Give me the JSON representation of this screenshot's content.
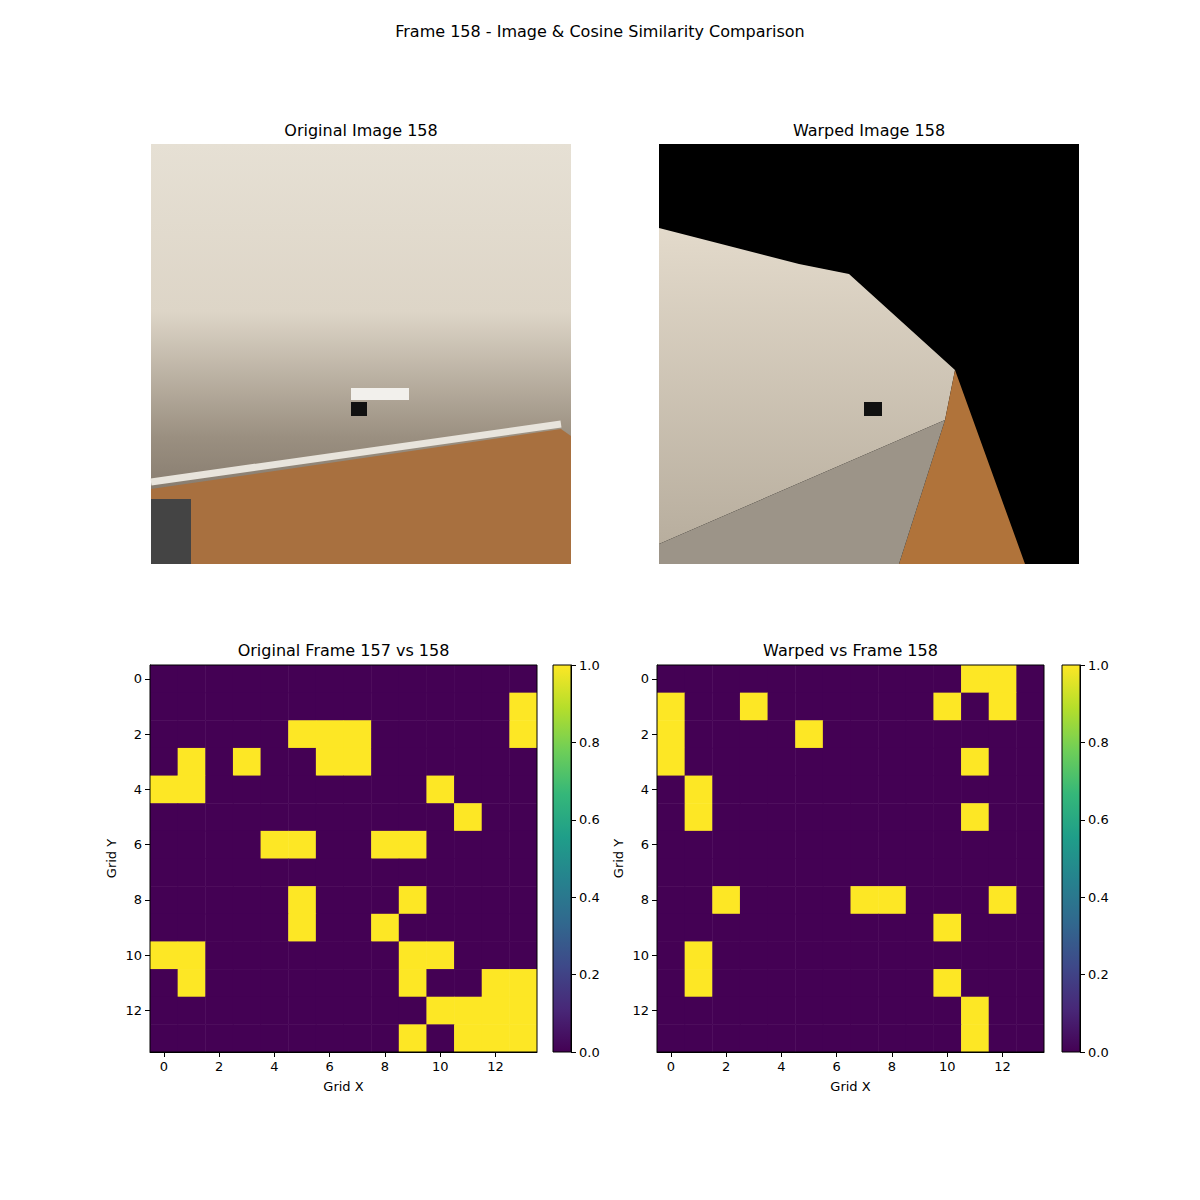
{
  "title": "Frame 158 - Image & Cosine Similarity Comparison",
  "images": [
    {
      "title": "Original Image 158"
    },
    {
      "title": "Warped Image 158"
    }
  ],
  "chart_data": [
    {
      "type": "heatmap",
      "title": "Original Frame 157 vs 158",
      "x_label": "Grid X",
      "y_label": "Grid Y",
      "xlim": [
        -0.5,
        13.5
      ],
      "ylim": [
        13.5,
        -0.5
      ],
      "xticks": [
        0,
        2,
        4,
        6,
        8,
        10,
        12
      ],
      "yticks": [
        0,
        2,
        4,
        6,
        8,
        10,
        12
      ],
      "cells": [
        [
          0,
          0,
          0,
          0,
          0,
          0,
          0,
          0,
          0,
          0,
          0,
          0,
          0,
          0
        ],
        [
          0,
          0,
          0,
          0,
          0,
          0,
          0,
          0,
          0,
          0,
          0,
          0,
          0,
          1
        ],
        [
          0,
          0,
          0,
          0,
          0,
          1,
          1,
          1,
          0,
          0,
          0,
          0,
          0,
          1
        ],
        [
          0,
          1,
          0,
          1,
          0,
          0,
          1,
          1,
          0,
          0,
          0,
          0,
          0,
          0
        ],
        [
          1,
          1,
          0,
          0,
          0,
          0,
          0,
          0,
          0,
          0,
          1,
          0,
          0,
          0
        ],
        [
          0,
          0,
          0,
          0,
          0,
          0,
          0,
          0,
          0,
          0,
          0,
          1,
          0,
          0
        ],
        [
          0,
          0,
          0,
          0,
          1,
          1,
          0,
          0,
          1,
          1,
          0,
          0,
          0,
          0
        ],
        [
          0,
          0,
          0,
          0,
          0,
          0,
          0,
          0,
          0,
          0,
          0,
          0,
          0,
          0
        ],
        [
          0,
          0,
          0,
          0,
          0,
          1,
          0,
          0,
          0,
          1,
          0,
          0,
          0,
          0
        ],
        [
          0,
          0,
          0,
          0,
          0,
          1,
          0,
          0,
          1,
          0,
          0,
          0,
          0,
          0
        ],
        [
          1,
          1,
          0,
          0,
          0,
          0,
          0,
          0,
          0,
          1,
          1,
          0,
          0,
          0
        ],
        [
          0,
          1,
          0,
          0,
          0,
          0,
          0,
          0,
          0,
          1,
          0,
          0,
          1,
          1
        ],
        [
          0,
          0,
          0,
          0,
          0,
          0,
          0,
          0,
          0,
          0,
          1,
          1,
          1,
          1
        ],
        [
          0,
          0,
          0,
          0,
          0,
          0,
          0,
          0,
          0,
          1,
          0,
          1,
          1,
          1
        ]
      ],
      "colorbar": {
        "range": [
          0,
          1
        ],
        "ticks": [
          {
            "value": 0,
            "label": "0.0"
          },
          {
            "value": 0.2,
            "label": "0.2"
          },
          {
            "value": 0.4,
            "label": "0.4"
          },
          {
            "value": 0.6,
            "label": "0.6"
          },
          {
            "value": 0.8,
            "label": "0.8"
          },
          {
            "value": 1,
            "label": "1.0"
          }
        ]
      }
    },
    {
      "type": "heatmap",
      "title": "Warped vs Frame 158",
      "x_label": "Grid X",
      "y_label": "Grid Y",
      "xlim": [
        -0.5,
        13.5
      ],
      "ylim": [
        13.5,
        -0.5
      ],
      "xticks": [
        0,
        2,
        4,
        6,
        8,
        10,
        12
      ],
      "yticks": [
        0,
        2,
        4,
        6,
        8,
        10,
        12
      ],
      "cells": [
        [
          0,
          0,
          0,
          0,
          0,
          0,
          0,
          0,
          0,
          0,
          0,
          1,
          1,
          0
        ],
        [
          1,
          0,
          0,
          1,
          0,
          0,
          0,
          0,
          0,
          0,
          1,
          0,
          1,
          0
        ],
        [
          1,
          0,
          0,
          0,
          0,
          1,
          0,
          0,
          0,
          0,
          0,
          0,
          0,
          0
        ],
        [
          1,
          0,
          0,
          0,
          0,
          0,
          0,
          0,
          0,
          0,
          0,
          1,
          0,
          0
        ],
        [
          0,
          1,
          0,
          0,
          0,
          0,
          0,
          0,
          0,
          0,
          0,
          0,
          0,
          0
        ],
        [
          0,
          1,
          0,
          0,
          0,
          0,
          0,
          0,
          0,
          0,
          0,
          1,
          0,
          0
        ],
        [
          0,
          0,
          0,
          0,
          0,
          0,
          0,
          0,
          0,
          0,
          0,
          0,
          0,
          0
        ],
        [
          0,
          0,
          0,
          0,
          0,
          0,
          0,
          0,
          0,
          0,
          0,
          0,
          0,
          0
        ],
        [
          0,
          0,
          1,
          0,
          0,
          0,
          0,
          1,
          1,
          0,
          0,
          0,
          1,
          0
        ],
        [
          0,
          0,
          0,
          0,
          0,
          0,
          0,
          0,
          0,
          0,
          1,
          0,
          0,
          0
        ],
        [
          0,
          1,
          0,
          0,
          0,
          0,
          0,
          0,
          0,
          0,
          0,
          0,
          0,
          0
        ],
        [
          0,
          1,
          0,
          0,
          0,
          0,
          0,
          0,
          0,
          0,
          1,
          0,
          0,
          0
        ],
        [
          0,
          0,
          0,
          0,
          0,
          0,
          0,
          0,
          0,
          0,
          0,
          1,
          0,
          0
        ],
        [
          0,
          0,
          0,
          0,
          0,
          0,
          0,
          0,
          0,
          0,
          0,
          1,
          0,
          0
        ]
      ],
      "colorbar": {
        "range": [
          0,
          1
        ],
        "ticks": [
          {
            "value": 0,
            "label": "0.0"
          },
          {
            "value": 0.2,
            "label": "0.2"
          },
          {
            "value": 0.4,
            "label": "0.4"
          },
          {
            "value": 0.6,
            "label": "0.6"
          },
          {
            "value": 0.8,
            "label": "0.8"
          },
          {
            "value": 1,
            "label": "1.0"
          }
        ]
      }
    }
  ]
}
